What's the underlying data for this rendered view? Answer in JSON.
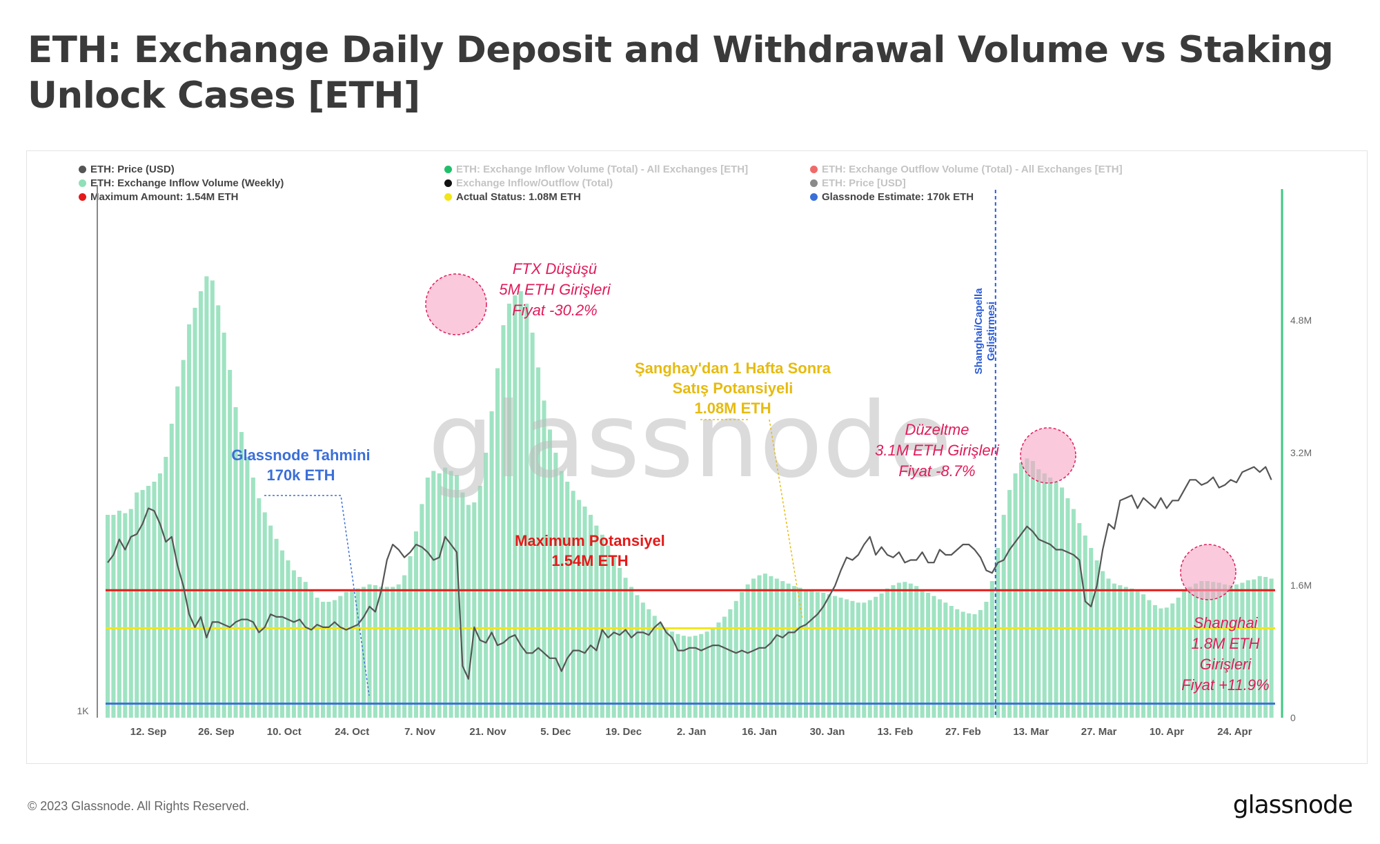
{
  "title": "ETH: Exchange Daily Deposit and Withdrawal Volume vs Staking Unlock Cases [ETH]",
  "legend": [
    {
      "label": "ETH: Price (USD)",
      "color": "#555555",
      "faded": false
    },
    {
      "label": "ETH: Exchange Inflow Volume (Weekly)",
      "color": "#8fe0b6",
      "faded": false
    },
    {
      "label": "Maximum Amount: 1.54M ETH",
      "color": "#e51919",
      "faded": false
    },
    {
      "label": "ETH: Exchange Inflow Volume (Total) - All Exchanges [ETH]",
      "color": "#1fbf6a",
      "faded": true
    },
    {
      "label": "Exchange Inflow/Outflow (Total)",
      "color": "#111111",
      "faded": true
    },
    {
      "label": "Actual Status: 1.08M ETH",
      "color": "#f2e51a",
      "faded": false
    },
    {
      "label": "ETH: Exchange Outflow Volume (Total) - All Exchanges [ETH]",
      "color": "#f06a6a",
      "faded": true
    },
    {
      "label": "ETH: Price [USD]",
      "color": "#8a8a8a",
      "faded": true
    },
    {
      "label": "Glassnode Estimate: 170k ETH",
      "color": "#3b6fd8",
      "faded": false
    }
  ],
  "watermark": "glassnode",
  "copyright": "© 2023 Glassnode. All Rights Reserved.",
  "brand": "glassnode",
  "chart_data": {
    "type": "bar",
    "x_axis": {
      "tick_labels": [
        "12. Sep",
        "26. Sep",
        "10. Oct",
        "24. Oct",
        "7. Nov",
        "21. Nov",
        "5. Dec",
        "19. Dec",
        "2. Jan",
        "16. Jan",
        "30. Jan",
        "13. Feb",
        "27. Feb",
        "13. Mar",
        "27. Mar",
        "10. Apr",
        "24. Apr"
      ]
    },
    "left_axis": {
      "tick_labels": [
        "1K"
      ]
    },
    "right_axis": {
      "tick_labels": [
        "0",
        "1.6M",
        "3.2M",
        "4.8M"
      ],
      "ylim": [
        0,
        6400000
      ]
    },
    "price_ylim": [
      950,
      3000
    ],
    "inflow_weekly_eth": [
      2450000,
      2450000,
      2500000,
      2470000,
      2520000,
      2720000,
      2750000,
      2800000,
      2850000,
      2950000,
      3150000,
      3550000,
      4000000,
      4320000,
      4750000,
      4950000,
      5150000,
      5330000,
      5280000,
      4980000,
      4650000,
      4200000,
      3750000,
      3450000,
      3150000,
      2900000,
      2650000,
      2480000,
      2320000,
      2160000,
      2020000,
      1900000,
      1780000,
      1700000,
      1640000,
      1550000,
      1450000,
      1400000,
      1400000,
      1420000,
      1470000,
      1520000,
      1540000,
      1560000,
      1580000,
      1610000,
      1600000,
      1580000,
      1580000,
      1580000,
      1610000,
      1720000,
      1950000,
      2250000,
      2580000,
      2900000,
      2980000,
      2950000,
      3020000,
      2980000,
      2930000,
      2720000,
      2570000,
      2600000,
      2800000,
      3200000,
      3700000,
      4220000,
      4740000,
      5000000,
      5100000,
      5150000,
      5000000,
      4650000,
      4230000,
      3830000,
      3480000,
      3200000,
      2980000,
      2850000,
      2740000,
      2630000,
      2550000,
      2450000,
      2320000,
      2210000,
      2080000,
      1940000,
      1810000,
      1690000,
      1580000,
      1480000,
      1390000,
      1310000,
      1230000,
      1140000,
      1080000,
      1040000,
      1010000,
      990000,
      980000,
      990000,
      1010000,
      1040000,
      1090000,
      1150000,
      1220000,
      1310000,
      1410000,
      1520000,
      1610000,
      1680000,
      1720000,
      1740000,
      1710000,
      1680000,
      1650000,
      1620000,
      1590000,
      1570000,
      1550000,
      1540000,
      1520000,
      1510000,
      1490000,
      1470000,
      1450000,
      1430000,
      1410000,
      1390000,
      1390000,
      1420000,
      1460000,
      1500000,
      1560000,
      1600000,
      1630000,
      1640000,
      1620000,
      1590000,
      1550000,
      1510000,
      1470000,
      1430000,
      1390000,
      1350000,
      1310000,
      1280000,
      1260000,
      1250000,
      1300000,
      1400000,
      1650000,
      2050000,
      2450000,
      2750000,
      2950000,
      3080000,
      3130000,
      3100000,
      3000000,
      2950000,
      2900000,
      2850000,
      2780000,
      2650000,
      2520000,
      2350000,
      2200000,
      2050000,
      1900000,
      1770000,
      1680000,
      1620000,
      1600000,
      1580000,
      1560000,
      1530000,
      1490000,
      1420000,
      1360000,
      1320000,
      1330000,
      1380000,
      1450000,
      1530000,
      1580000,
      1620000,
      1650000,
      1650000,
      1640000,
      1630000,
      1610000,
      1600000,
      1610000,
      1630000,
      1660000,
      1670000,
      1710000,
      1700000,
      1680000
    ],
    "price_usd": [
      1550,
      1580,
      1640,
      1600,
      1650,
      1660,
      1700,
      1760,
      1750,
      1700,
      1630,
      1650,
      1540,
      1460,
      1350,
      1300,
      1340,
      1260,
      1320,
      1320,
      1310,
      1300,
      1320,
      1330,
      1330,
      1320,
      1280,
      1300,
      1350,
      1340,
      1340,
      1330,
      1320,
      1330,
      1300,
      1290,
      1310,
      1300,
      1300,
      1320,
      1300,
      1290,
      1300,
      1310,
      1340,
      1380,
      1360,
      1440,
      1560,
      1620,
      1600,
      1570,
      1590,
      1620,
      1610,
      1590,
      1560,
      1570,
      1650,
      1620,
      1590,
      1150,
      1100,
      1300,
      1250,
      1240,
      1280,
      1230,
      1240,
      1260,
      1270,
      1230,
      1200,
      1200,
      1220,
      1200,
      1180,
      1180,
      1130,
      1180,
      1210,
      1210,
      1200,
      1230,
      1210,
      1290,
      1260,
      1280,
      1270,
      1290,
      1260,
      1280,
      1280,
      1270,
      1300,
      1320,
      1280,
      1260,
      1210,
      1210,
      1220,
      1220,
      1210,
      1220,
      1230,
      1230,
      1220,
      1210,
      1200,
      1210,
      1200,
      1210,
      1220,
      1220,
      1240,
      1270,
      1260,
      1280,
      1280,
      1300,
      1310,
      1330,
      1350,
      1380,
      1420,
      1460,
      1520,
      1570,
      1560,
      1580,
      1620,
      1650,
      1580,
      1610,
      1580,
      1570,
      1590,
      1550,
      1560,
      1560,
      1590,
      1550,
      1550,
      1600,
      1580,
      1580,
      1600,
      1620,
      1620,
      1600,
      1570,
      1520,
      1510,
      1550,
      1560,
      1600,
      1630,
      1660,
      1690,
      1670,
      1640,
      1630,
      1620,
      1600,
      1600,
      1590,
      1580,
      1560,
      1400,
      1380,
      1460,
      1600,
      1700,
      1680,
      1790,
      1800,
      1810,
      1760,
      1800,
      1780,
      1760,
      1800,
      1760,
      1790,
      1790,
      1830,
      1870,
      1870,
      1850,
      1860,
      1880,
      1840,
      1850,
      1870,
      1860,
      1900,
      1910,
      1920,
      1900,
      1920,
      1870
    ],
    "reference_lines": [
      {
        "name": "Maximum Amount",
        "value": 1540000,
        "color": "#e51919"
      },
      {
        "name": "Actual Status",
        "value": 1080000,
        "color": "#f2e51a"
      },
      {
        "name": "Glassnode Estimate",
        "value": 170000,
        "color": "#3b6fd8"
      }
    ],
    "vertical_event": {
      "label_lines": [
        "Shanghai/Capella",
        "Geliştirmesi"
      ],
      "color": "#2a5bd7"
    },
    "annotations": [
      {
        "lines": [
          "FTX Düşüşü",
          "5M ETH Girişleri",
          "Fiyat -30.2%"
        ],
        "color": "#e01b5a"
      },
      {
        "lines": [
          "Şanghay'dan 1 Hafta Sonra",
          "Satış Potansiyeli",
          "1.08M ETH"
        ],
        "color": "#e6bb10"
      },
      {
        "lines": [
          "Düzeltme",
          "3.1M ETH Girişleri",
          "Fiyat -8.7%"
        ],
        "color": "#e01b5a"
      },
      {
        "lines": [
          "Glassnode Tahmini",
          "170k ETH"
        ],
        "color": "#3b6fd8"
      },
      {
        "lines": [
          "Maximum Potansiyel",
          "1.54M ETH"
        ],
        "color": "#e51919"
      },
      {
        "lines": [
          "Shanghai",
          "1.8M ETH",
          "Girişleri",
          "Fiyat +11.9%"
        ],
        "color": "#e01b5a"
      }
    ]
  }
}
